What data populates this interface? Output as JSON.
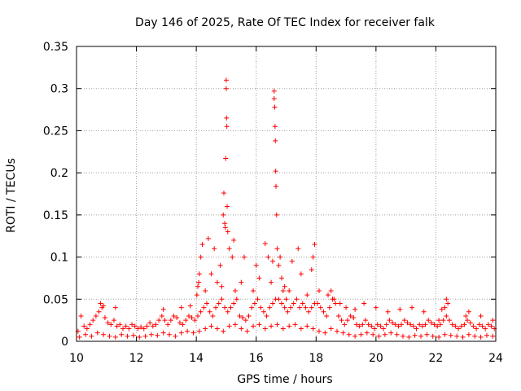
{
  "chart_data": {
    "type": "scatter",
    "title": "Day 146 of 2025, Rate Of TEC Index for receiver falk",
    "xlabel": "GPS time / hours",
    "ylabel": "ROTI / TECUs",
    "xlim": [
      10,
      24
    ],
    "ylim": [
      0,
      0.35
    ],
    "xticks": [
      10,
      12,
      14,
      16,
      18,
      20,
      22,
      24
    ],
    "xtick_labels": [
      "10",
      "12",
      "14",
      "16",
      "18",
      "20",
      "22",
      "24"
    ],
    "yticks": [
      0,
      0.05,
      0.1,
      0.15,
      0.2,
      0.25,
      0.3,
      0.35
    ],
    "ytick_labels": [
      "0",
      "0.05",
      "0.1",
      "0.15",
      "0.2",
      "0.25",
      "0.3",
      "0.35"
    ],
    "grid": true,
    "marker": "+",
    "color": "#ff0000",
    "series": [
      {
        "name": "ROTI",
        "x": [
          10.05,
          10.15,
          10.25,
          10.35,
          10.45,
          10.55,
          10.65,
          10.75,
          10.85,
          10.95,
          11.05,
          11.15,
          11.25,
          11.35,
          11.45,
          11.55,
          11.65,
          11.75,
          11.85,
          11.95,
          12.05,
          12.15,
          12.25,
          12.35,
          12.45,
          12.55,
          12.65,
          12.75,
          12.85,
          12.95,
          13.05,
          13.15,
          13.25,
          13.35,
          13.45,
          13.55,
          13.65,
          13.75,
          13.85,
          13.95,
          14.05,
          14.15,
          14.25,
          14.35,
          14.45,
          14.55,
          14.65,
          14.75,
          14.85,
          14.95,
          15.05,
          15.15,
          15.25,
          15.35,
          15.45,
          15.55,
          15.65,
          15.75,
          15.85,
          15.95,
          16.05,
          16.15,
          16.25,
          16.35,
          16.45,
          16.55,
          16.65,
          16.75,
          16.85,
          16.95,
          17.05,
          17.15,
          17.25,
          17.35,
          17.45,
          17.55,
          17.65,
          17.75,
          17.85,
          17.95,
          18.05,
          18.15,
          18.25,
          18.35,
          18.45,
          18.55,
          18.65,
          18.75,
          18.85,
          18.95,
          19.05,
          19.15,
          19.25,
          19.35,
          19.45,
          19.55,
          19.65,
          19.75,
          19.85,
          19.95,
          20.05,
          20.15,
          20.25,
          20.35,
          20.45,
          20.55,
          20.65,
          20.75,
          20.85,
          20.95,
          21.05,
          21.15,
          21.25,
          21.35,
          21.45,
          21.55,
          21.65,
          21.75,
          21.85,
          21.95,
          22.05,
          22.15,
          22.25,
          22.35,
          22.45,
          22.55,
          22.65,
          22.75,
          22.85,
          22.95,
          23.05,
          23.15,
          23.25,
          23.35,
          23.45,
          23.55,
          23.65,
          23.75,
          23.85,
          23.95,
          10.1,
          10.3,
          10.5,
          10.7,
          10.9,
          11.1,
          11.3,
          11.5,
          11.7,
          11.9,
          12.1,
          12.3,
          12.5,
          12.7,
          12.9,
          13.1,
          13.3,
          13.5,
          13.7,
          13.9,
          14.1,
          14.3,
          14.5,
          14.7,
          14.9,
          15.1,
          15.3,
          15.5,
          15.7,
          15.9,
          16.1,
          16.3,
          16.5,
          16.7,
          16.9,
          17.1,
          17.3,
          17.5,
          17.7,
          17.9,
          18.1,
          18.3,
          18.5,
          18.7,
          18.9,
          19.1,
          19.3,
          19.5,
          19.7,
          19.9,
          20.1,
          20.3,
          20.5,
          20.7,
          20.9,
          21.1,
          21.3,
          21.5,
          21.7,
          21.9,
          22.1,
          22.3,
          22.5,
          22.7,
          22.9,
          23.1,
          23.3,
          23.5,
          23.7,
          23.9,
          10.8,
          10.9,
          11.3,
          12.9,
          13.5,
          13.8,
          14.02,
          14.05,
          14.08,
          14.1,
          14.15,
          14.2,
          14.3,
          14.4,
          14.5,
          14.6,
          14.7,
          14.8,
          14.85,
          14.9,
          14.92,
          14.95,
          14.97,
          14.98,
          15.0,
          15.0,
          15.01,
          15.02,
          15.03,
          15.05,
          15.1,
          15.2,
          15.25,
          15.3,
          15.5,
          15.6,
          15.9,
          16.0,
          16.1,
          16.3,
          16.4,
          16.5,
          16.55,
          16.6,
          16.6,
          16.62,
          16.63,
          16.64,
          16.65,
          16.66,
          16.68,
          16.7,
          16.75,
          16.8,
          16.85,
          16.9,
          16.95,
          17.0,
          17.1,
          17.2,
          17.4,
          17.5,
          17.7,
          17.85,
          17.9,
          17.95,
          18.1,
          18.4,
          18.5,
          18.6,
          18.8,
          19.0,
          19.3,
          19.6,
          20.0,
          20.4,
          20.8,
          21.2,
          21.6,
          22.1,
          22.2,
          22.3,
          22.35,
          22.4,
          23.0,
          23.1,
          23.5,
          23.9
        ],
        "y": [
          0.012,
          0.03,
          0.018,
          0.015,
          0.02,
          0.025,
          0.03,
          0.035,
          0.04,
          0.028,
          0.022,
          0.02,
          0.025,
          0.018,
          0.02,
          0.015,
          0.018,
          0.015,
          0.02,
          0.018,
          0.015,
          0.017,
          0.015,
          0.018,
          0.022,
          0.018,
          0.02,
          0.025,
          0.03,
          0.025,
          0.02,
          0.025,
          0.03,
          0.028,
          0.022,
          0.02,
          0.025,
          0.03,
          0.028,
          0.025,
          0.03,
          0.035,
          0.04,
          0.045,
          0.035,
          0.03,
          0.04,
          0.045,
          0.05,
          0.04,
          0.035,
          0.04,
          0.045,
          0.05,
          0.03,
          0.028,
          0.025,
          0.03,
          0.04,
          0.045,
          0.05,
          0.04,
          0.035,
          0.03,
          0.04,
          0.045,
          0.05,
          0.05,
          0.045,
          0.04,
          0.035,
          0.04,
          0.045,
          0.05,
          0.04,
          0.045,
          0.04,
          0.035,
          0.04,
          0.045,
          0.045,
          0.04,
          0.035,
          0.03,
          0.04,
          0.05,
          0.045,
          0.03,
          0.025,
          0.02,
          0.025,
          0.03,
          0.028,
          0.02,
          0.018,
          0.02,
          0.025,
          0.02,
          0.018,
          0.015,
          0.02,
          0.018,
          0.015,
          0.02,
          0.025,
          0.022,
          0.02,
          0.018,
          0.02,
          0.025,
          0.022,
          0.02,
          0.018,
          0.015,
          0.02,
          0.018,
          0.02,
          0.025,
          0.022,
          0.02,
          0.018,
          0.02,
          0.025,
          0.03,
          0.025,
          0.02,
          0.018,
          0.015,
          0.018,
          0.02,
          0.025,
          0.022,
          0.018,
          0.015,
          0.02,
          0.018,
          0.015,
          0.02,
          0.018,
          0.015,
          0.005,
          0.008,
          0.006,
          0.01,
          0.008,
          0.006,
          0.005,
          0.008,
          0.006,
          0.007,
          0.005,
          0.006,
          0.008,
          0.007,
          0.01,
          0.008,
          0.006,
          0.01,
          0.012,
          0.01,
          0.012,
          0.015,
          0.018,
          0.015,
          0.012,
          0.018,
          0.02,
          0.015,
          0.012,
          0.018,
          0.02,
          0.015,
          0.018,
          0.02,
          0.015,
          0.018,
          0.02,
          0.015,
          0.018,
          0.015,
          0.012,
          0.01,
          0.015,
          0.012,
          0.01,
          0.008,
          0.006,
          0.008,
          0.01,
          0.008,
          0.006,
          0.008,
          0.01,
          0.008,
          0.006,
          0.005,
          0.007,
          0.006,
          0.008,
          0.006,
          0.005,
          0.008,
          0.007,
          0.006,
          0.005,
          0.008,
          0.006,
          0.005,
          0.007,
          0.006,
          0.045,
          0.042,
          0.04,
          0.038,
          0.04,
          0.042,
          0.055,
          0.065,
          0.07,
          0.08,
          0.1,
          0.115,
          0.06,
          0.122,
          0.08,
          0.11,
          0.07,
          0.09,
          0.065,
          0.15,
          0.176,
          0.14,
          0.135,
          0.217,
          0.31,
          0.3,
          0.265,
          0.255,
          0.16,
          0.13,
          0.11,
          0.1,
          0.12,
          0.06,
          0.07,
          0.1,
          0.06,
          0.09,
          0.075,
          0.116,
          0.1,
          0.07,
          0.095,
          0.297,
          0.288,
          0.278,
          0.255,
          0.238,
          0.202,
          0.184,
          0.15,
          0.11,
          0.09,
          0.1,
          0.075,
          0.06,
          0.065,
          0.05,
          0.06,
          0.095,
          0.11,
          0.08,
          0.055,
          0.085,
          0.1,
          0.115,
          0.06,
          0.055,
          0.06,
          0.05,
          0.045,
          0.04,
          0.038,
          0.045,
          0.04,
          0.035,
          0.038,
          0.04,
          0.035,
          0.025,
          0.038,
          0.04,
          0.05,
          0.045,
          0.03,
          0.035,
          0.03,
          0.025
        ]
      }
    ]
  }
}
